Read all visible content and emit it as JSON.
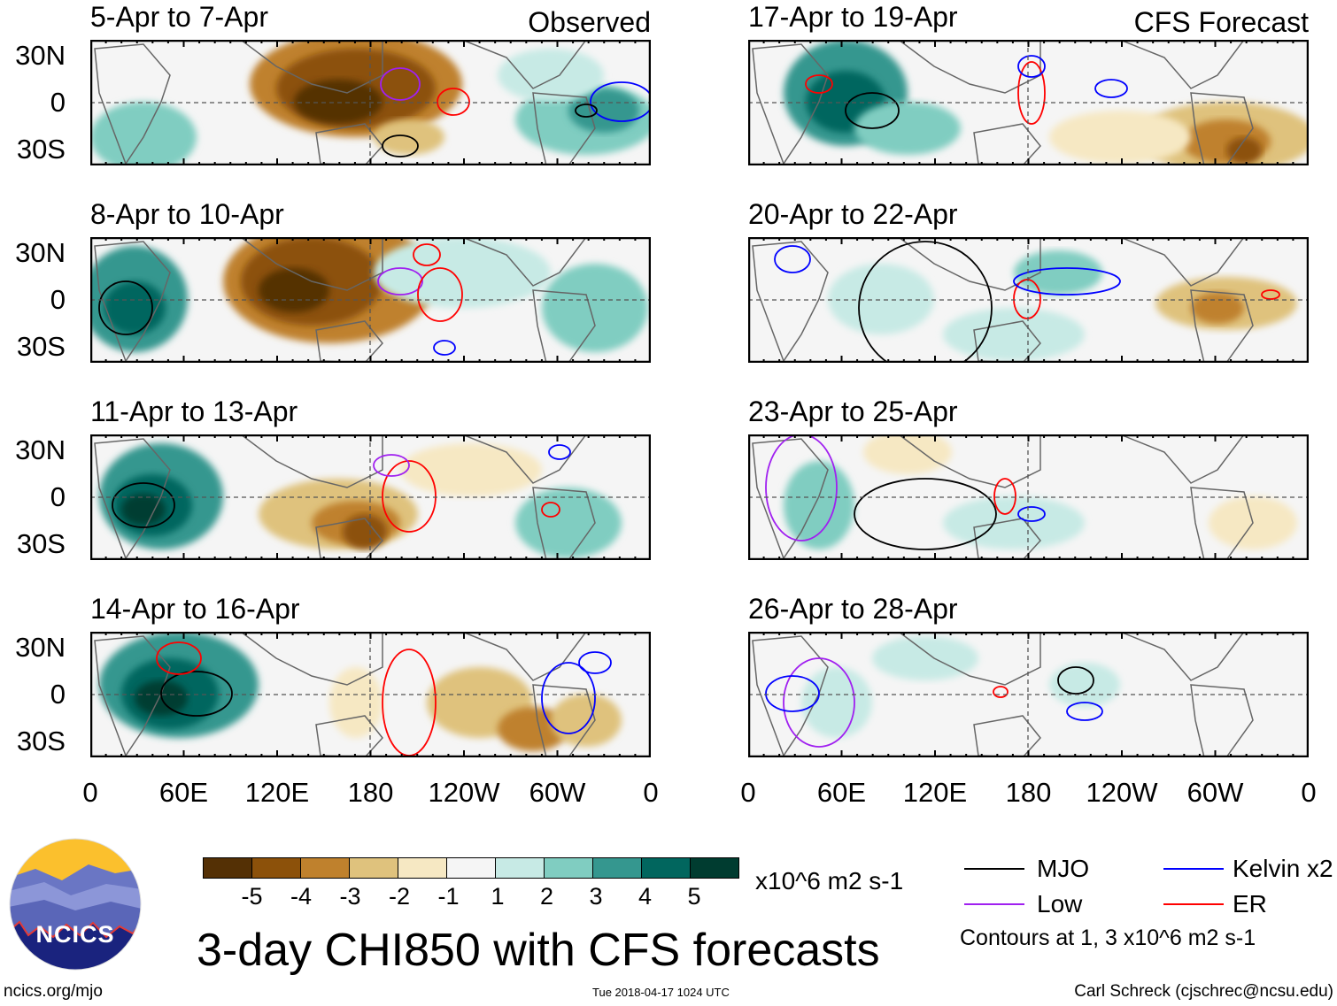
{
  "panels": {
    "left": [
      {
        "title": "5-Apr to 7-Apr",
        "tag": "Observed"
      },
      {
        "title": "8-Apr to 10-Apr"
      },
      {
        "title": "11-Apr to 13-Apr"
      },
      {
        "title": "14-Apr to 16-Apr"
      }
    ],
    "right": [
      {
        "title": "17-Apr to 19-Apr",
        "tag": "CFS Forecast"
      },
      {
        "title": "20-Apr to 22-Apr"
      },
      {
        "title": "23-Apr to 25-Apr"
      },
      {
        "title": "26-Apr to 28-Apr"
      }
    ]
  },
  "lat_labels": [
    "30N",
    "0",
    "30S"
  ],
  "lon_labels": [
    "0",
    "60E",
    "120E",
    "180",
    "120W",
    "60W",
    "0"
  ],
  "colorbar": {
    "colors": [
      "#543005",
      "#8c510a",
      "#bf812d",
      "#dfc27d",
      "#f6e8c3",
      "#f5f5f5",
      "#c7eae5",
      "#80cdc1",
      "#35978f",
      "#01665e",
      "#003c30"
    ],
    "labels": [
      "-5",
      "-4",
      "-3",
      "-2",
      "-1",
      "1",
      "2",
      "3",
      "4",
      "5"
    ],
    "units": "x10^6 m2 s-1"
  },
  "legend": {
    "items": [
      {
        "label": "MJO",
        "color": "#000000"
      },
      {
        "label": "Kelvin x2",
        "color": "#0000ff"
      },
      {
        "label": "Low",
        "color": "#a020f0"
      },
      {
        "label": "ER",
        "color": "#ff0000"
      }
    ],
    "note": "Contours at 1, 3 x10^6 m2 s-1"
  },
  "title": "3-day CHI850 with CFS forecasts",
  "logo_text": "NCICS",
  "footer": {
    "url": "ncics.org/mjo",
    "timestamp": "Tue 2018-04-17 1024 UTC",
    "author": "Carl Schreck (cjschrec@ncsu.edu)"
  }
}
